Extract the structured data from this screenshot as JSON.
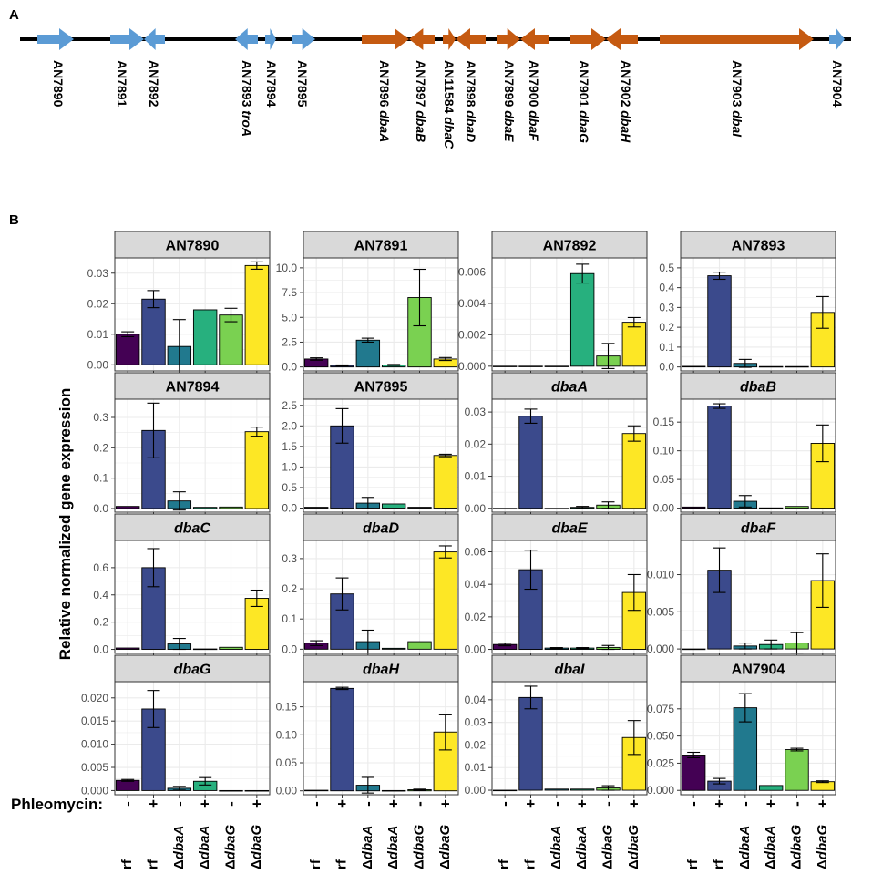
{
  "panel_labels": {
    "a": "A",
    "b": "B"
  },
  "colors": {
    "flank_gene": "#5B9BD5",
    "cluster_gene": "#C55A11",
    "line": "#000000",
    "strip_fill": "#d9d9d9",
    "panel_bg": "#ffffff",
    "grid": "#ebebeb",
    "bars": [
      "#440154",
      "#3b4a8c",
      "#21798e",
      "#27b07e",
      "#7ad151",
      "#fde725"
    ]
  },
  "gene_map": {
    "genes": [
      {
        "id": "AN7890",
        "label": "AN7890",
        "gene": "",
        "type": "flank",
        "direction": "right"
      },
      {
        "id": "AN7891",
        "label": "AN7891",
        "gene": "",
        "type": "flank",
        "direction": "right"
      },
      {
        "id": "AN7892",
        "label": "AN7892",
        "gene": "",
        "type": "flank",
        "direction": "left"
      },
      {
        "id": "AN7893",
        "label": "AN7893",
        "gene": "troA",
        "type": "flank",
        "direction": "left"
      },
      {
        "id": "AN7894",
        "label": "AN7894",
        "gene": "",
        "type": "flank",
        "direction": "right"
      },
      {
        "id": "AN7895",
        "label": "AN7895",
        "gene": "",
        "type": "flank",
        "direction": "right"
      },
      {
        "id": "AN7896",
        "label": "AN7896",
        "gene": "dbaA",
        "type": "cluster",
        "direction": "right"
      },
      {
        "id": "AN7897",
        "label": "AN7897",
        "gene": "dbaB",
        "type": "cluster",
        "direction": "left"
      },
      {
        "id": "AN11584",
        "label": "AN11584",
        "gene": "dbaC",
        "type": "cluster",
        "direction": "right"
      },
      {
        "id": "AN7898",
        "label": "AN7898",
        "gene": "dbaD",
        "type": "cluster",
        "direction": "left"
      },
      {
        "id": "AN7899",
        "label": "AN7899",
        "gene": "dbaE",
        "type": "cluster",
        "direction": "right"
      },
      {
        "id": "AN7900",
        "label": "AN7900",
        "gene": "dbaF",
        "type": "cluster",
        "direction": "left"
      },
      {
        "id": "AN7901",
        "label": "AN7901",
        "gene": "dbaG",
        "type": "cluster",
        "direction": "right"
      },
      {
        "id": "AN7902",
        "label": "AN7902",
        "gene": "dbaH",
        "type": "cluster",
        "direction": "left"
      },
      {
        "id": "AN7903",
        "label": "AN7903",
        "gene": "dbaI",
        "type": "cluster",
        "direction": "right"
      },
      {
        "id": "AN7904",
        "label": "AN7904",
        "gene": "",
        "type": "flank",
        "direction": "right"
      }
    ]
  },
  "chart_data": {
    "type": "bar",
    "ylabel": "Relative normalized gene expression",
    "x_prefix": "Phleomycin:",
    "phleomycin": [
      "-",
      "+",
      "-",
      "+",
      "-",
      "+"
    ],
    "strains": [
      {
        "prefix": "",
        "name": "rf"
      },
      {
        "prefix": "",
        "name": "rf"
      },
      {
        "prefix": "Δ",
        "name": "dbaA"
      },
      {
        "prefix": "Δ",
        "name": "dbaA"
      },
      {
        "prefix": "Δ",
        "name": "dbaG"
      },
      {
        "prefix": "Δ",
        "name": "dbaG"
      }
    ],
    "facets": [
      {
        "title": "AN7890",
        "italic": false,
        "ylim": [
          -0.002,
          0.035
        ],
        "ticks": [
          0.0,
          0.01,
          0.02,
          0.03
        ],
        "tick_labels": [
          "0.00",
          "0.01",
          "0.02",
          "0.03"
        ],
        "values": [
          0.01,
          0.0215,
          0.006,
          0.018,
          0.0163,
          0.0325
        ],
        "errors": [
          0.0008,
          0.0028,
          0.0088,
          0.0,
          0.0022,
          0.0012
        ]
      },
      {
        "title": "AN7891",
        "italic": false,
        "ylim": [
          -0.4,
          11.0
        ],
        "ticks": [
          0.0,
          2.5,
          5.0,
          7.5,
          10.0
        ],
        "tick_labels": [
          "0.0",
          "2.5",
          "5.0",
          "7.5",
          "10.0"
        ],
        "values": [
          0.8,
          0.15,
          2.7,
          0.2,
          7.0,
          0.8
        ],
        "errors": [
          0.12,
          0.05,
          0.2,
          0.05,
          2.85,
          0.15
        ]
      },
      {
        "title": "AN7892",
        "italic": false,
        "ylim": [
          -0.0003,
          0.0069
        ],
        "ticks": [
          0.0,
          0.002,
          0.004,
          0.006
        ],
        "tick_labels": [
          "0.000",
          "0.002",
          "0.004",
          "0.006"
        ],
        "values": [
          0.0,
          0.0,
          0.0,
          0.0059,
          0.00065,
          0.0028
        ],
        "errors": [
          0.0,
          0.0,
          0.0,
          0.0006,
          0.0008,
          0.0003
        ]
      },
      {
        "title": "AN7893",
        "italic": false,
        "ylim": [
          -0.02,
          0.55
        ],
        "ticks": [
          0.0,
          0.1,
          0.2,
          0.3,
          0.4,
          0.5
        ],
        "tick_labels": [
          "0.0",
          "0.1",
          "0.2",
          "0.3",
          "0.4",
          "0.5"
        ],
        "values": [
          0.003,
          0.46,
          0.018,
          0.002,
          0.002,
          0.275
        ],
        "errors": [
          0.0,
          0.018,
          0.02,
          0.0,
          0.0,
          0.08
        ]
      },
      {
        "title": "AN7894",
        "italic": false,
        "ylim": [
          -0.012,
          0.36
        ],
        "ticks": [
          0.0,
          0.1,
          0.2,
          0.3
        ],
        "tick_labels": [
          "0.0",
          "0.1",
          "0.2",
          "0.3"
        ],
        "values": [
          0.007,
          0.257,
          0.025,
          0.004,
          0.005,
          0.253
        ],
        "errors": [
          0.0,
          0.09,
          0.03,
          0.0,
          0.0,
          0.015
        ]
      },
      {
        "title": "AN7895",
        "italic": false,
        "ylim": [
          -0.1,
          2.65
        ],
        "ticks": [
          0.0,
          0.5,
          1.0,
          1.5,
          2.0,
          2.5
        ],
        "tick_labels": [
          "0.0",
          "0.5",
          "1.0",
          "1.5",
          "2.0",
          "2.5"
        ],
        "values": [
          0.02,
          2.0,
          0.12,
          0.1,
          0.02,
          1.28
        ],
        "errors": [
          0.0,
          0.42,
          0.14,
          0.0,
          0.0,
          0.03
        ]
      },
      {
        "title": "dbaA",
        "italic": true,
        "ylim": [
          -0.0012,
          0.034
        ],
        "ticks": [
          0.0,
          0.01,
          0.02,
          0.03
        ],
        "tick_labels": [
          "0.00",
          "0.01",
          "0.02",
          "0.03"
        ],
        "values": [
          0.0,
          0.0287,
          0.0,
          0.0003,
          0.001,
          0.0233
        ],
        "errors": [
          0.0,
          0.0022,
          0.0,
          0.0003,
          0.001,
          0.0024
        ]
      },
      {
        "title": "dbaB",
        "italic": true,
        "ylim": [
          -0.007,
          0.19
        ],
        "ticks": [
          0.0,
          0.05,
          0.1,
          0.15
        ],
        "tick_labels": [
          "0.00",
          "0.05",
          "0.10",
          "0.15"
        ],
        "values": [
          0.002,
          0.178,
          0.012,
          0.0005,
          0.003,
          0.113
        ],
        "errors": [
          0.0,
          0.004,
          0.01,
          0.0,
          0.0,
          0.032
        ]
      },
      {
        "title": "dbaC",
        "italic": true,
        "ylim": [
          -0.03,
          0.8
        ],
        "ticks": [
          0.0,
          0.2,
          0.4,
          0.6
        ],
        "tick_labels": [
          "0.0",
          "0.2",
          "0.4",
          "0.6"
        ],
        "values": [
          0.01,
          0.6,
          0.04,
          0.003,
          0.015,
          0.375
        ],
        "errors": [
          0.0,
          0.14,
          0.04,
          0.0,
          0.0,
          0.06
        ]
      },
      {
        "title": "dbaD",
        "italic": true,
        "ylim": [
          -0.014,
          0.36
        ],
        "ticks": [
          0.0,
          0.1,
          0.2,
          0.3
        ],
        "tick_labels": [
          "0.0",
          "0.1",
          "0.2",
          "0.3"
        ],
        "values": [
          0.02,
          0.183,
          0.025,
          0.003,
          0.025,
          0.322
        ],
        "errors": [
          0.008,
          0.053,
          0.038,
          0.0,
          0.0,
          0.02
        ]
      },
      {
        "title": "dbaE",
        "italic": true,
        "ylim": [
          -0.0025,
          0.067
        ],
        "ticks": [
          0.0,
          0.02,
          0.04,
          0.06
        ],
        "tick_labels": [
          "0.00",
          "0.02",
          "0.04",
          "0.06"
        ],
        "values": [
          0.003,
          0.049,
          0.0008,
          0.0008,
          0.0012,
          0.035
        ],
        "errors": [
          0.0008,
          0.012,
          0.0003,
          0.0003,
          0.0012,
          0.011
        ]
      },
      {
        "title": "dbaF",
        "italic": true,
        "ylim": [
          -0.0006,
          0.0146
        ],
        "ticks": [
          0.0,
          0.005,
          0.01
        ],
        "tick_labels": [
          "0.000",
          "0.005",
          "0.010"
        ],
        "values": [
          0.0,
          0.0106,
          0.0004,
          0.0006,
          0.0008,
          0.0092
        ],
        "errors": [
          0.0,
          0.003,
          0.0004,
          0.0006,
          0.0014,
          0.0036
        ]
      },
      {
        "title": "dbaG",
        "italic": true,
        "ylim": [
          -0.0009,
          0.0235
        ],
        "ticks": [
          0.0,
          0.005,
          0.01,
          0.015,
          0.02
        ],
        "tick_labels": [
          "0.000",
          "0.005",
          "0.010",
          "0.015",
          "0.020"
        ],
        "values": [
          0.0022,
          0.0176,
          0.0005,
          0.002,
          0.0,
          0.0
        ],
        "errors": [
          0.0002,
          0.004,
          0.0004,
          0.0008,
          0.0,
          0.0
        ]
      },
      {
        "title": "dbaH",
        "italic": true,
        "ylim": [
          -0.007,
          0.195
        ],
        "ticks": [
          0.0,
          0.05,
          0.1,
          0.15
        ],
        "tick_labels": [
          "0.00",
          "0.05",
          "0.10",
          "0.15"
        ],
        "values": [
          0.001,
          0.183,
          0.01,
          0.0005,
          0.002,
          0.105
        ],
        "errors": [
          0.0,
          0.002,
          0.014,
          0.0,
          0.001,
          0.032
        ]
      },
      {
        "title": "dbaI",
        "italic": true,
        "ylim": [
          -0.002,
          0.048
        ],
        "ticks": [
          0.0,
          0.01,
          0.02,
          0.03,
          0.04
        ],
        "tick_labels": [
          "0.00",
          "0.01",
          "0.02",
          "0.03",
          "0.04"
        ],
        "values": [
          0.0,
          0.041,
          0.0005,
          0.0005,
          0.001,
          0.0233
        ],
        "errors": [
          0.0,
          0.005,
          0.0,
          0.0,
          0.001,
          0.0075
        ]
      },
      {
        "title": "AN7904",
        "italic": false,
        "ylim": [
          -0.004,
          0.1
        ],
        "ticks": [
          0.0,
          0.025,
          0.05,
          0.075
        ],
        "tick_labels": [
          "0.000",
          "0.025",
          "0.050",
          "0.075"
        ],
        "values": [
          0.0325,
          0.0085,
          0.076,
          0.0045,
          0.0375,
          0.008
        ],
        "errors": [
          0.0025,
          0.0025,
          0.013,
          0.0,
          0.0012,
          0.0008
        ]
      }
    ]
  }
}
